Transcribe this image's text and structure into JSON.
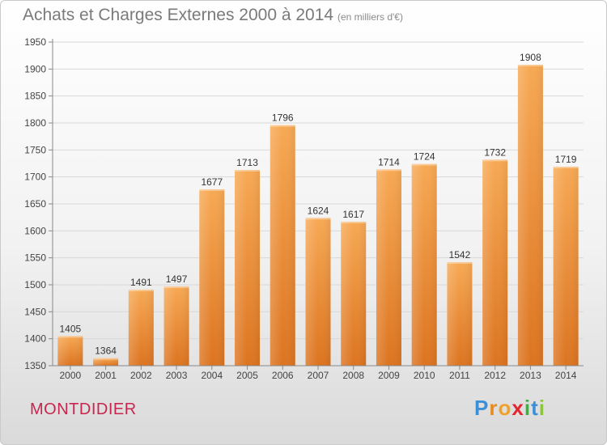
{
  "title": "Achats et Charges Externes 2000 à 2014",
  "subtitle": "(en milliers d'€)",
  "town": "MONTDIDIER",
  "logo": {
    "letters": [
      "P",
      "r",
      "o",
      "x",
      "i",
      "t",
      "i"
    ],
    "colors": [
      "#3a8fd6",
      "#e98a1e",
      "#f0a12b",
      "#e3262e",
      "#4aa84a",
      "#3a8fd6",
      "#8cc63f"
    ]
  },
  "colors": {
    "bar_light": "#f7a954",
    "bar_dark": "#dc7420",
    "grid": "#d8d8d8",
    "axis_text": "#444444"
  },
  "chart_data": {
    "type": "bar",
    "title": "Achats et Charges Externes 2000 à 2014",
    "subtitle": "(en milliers d'€)",
    "xlabel": "",
    "ylabel": "",
    "categories": [
      "2000",
      "2001",
      "2002",
      "2003",
      "2004",
      "2005",
      "2006",
      "2007",
      "2008",
      "2009",
      "2010",
      "2011",
      "2012",
      "2013",
      "2014"
    ],
    "values": [
      1405,
      1364,
      1491,
      1497,
      1677,
      1713,
      1796,
      1624,
      1617,
      1714,
      1724,
      1542,
      1732,
      1908,
      1719
    ],
    "ylim": [
      1350,
      1950
    ],
    "yticks": [
      1350,
      1400,
      1450,
      1500,
      1550,
      1600,
      1650,
      1700,
      1750,
      1800,
      1850,
      1900,
      1950
    ],
    "grid": true,
    "legend": "none"
  }
}
